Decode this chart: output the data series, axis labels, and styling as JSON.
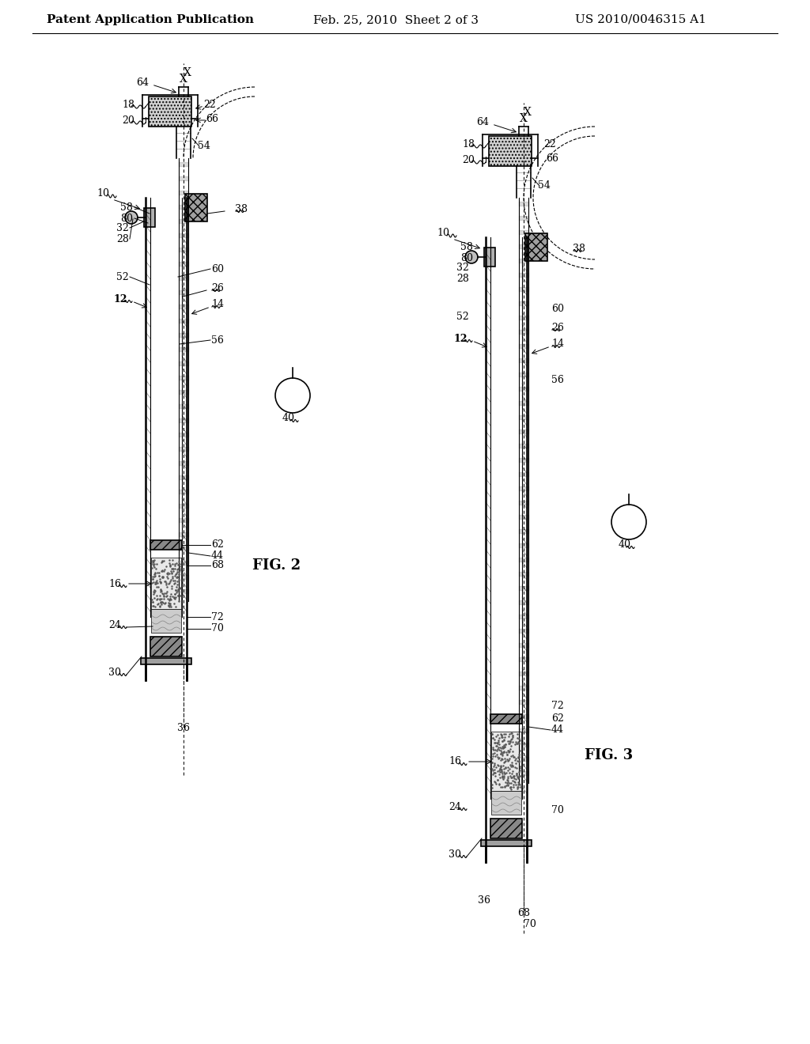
{
  "background_color": "#ffffff",
  "header_text": "Patent Application Publication",
  "header_date": "Feb. 25, 2010  Sheet 2 of 3",
  "header_patent": "US 2010/0046315 A1",
  "fig2_label": "FIG. 2",
  "fig3_label": "FIG. 3",
  "line_color": "#000000",
  "hatch_color": "#000000",
  "font_size_header": 11,
  "font_size_label": 10,
  "font_size_ref": 9
}
